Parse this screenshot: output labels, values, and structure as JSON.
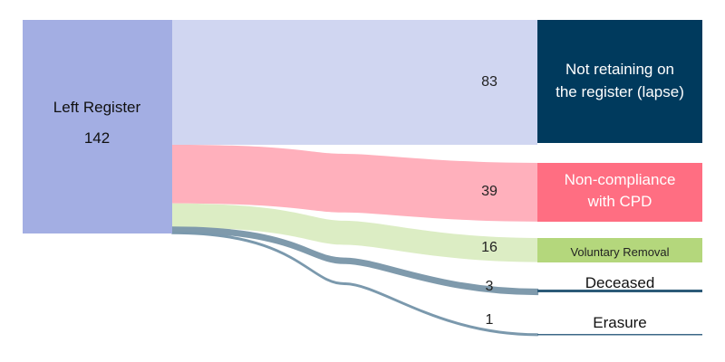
{
  "chart_data": {
    "type": "sankey",
    "source": {
      "label": "Left Register",
      "value": 142,
      "color": "#A3AEE3"
    },
    "targets": [
      {
        "label_lines": [
          "Not retaining on",
          "the register (lapse)"
        ],
        "value": 83,
        "flow_color": "#D0D6F1",
        "node_color": "#003A5D",
        "label_color": "#FFFFFF"
      },
      {
        "label_lines": [
          "Non-compliance",
          "with CPD"
        ],
        "value": 39,
        "flow_color": "#FFB0BC",
        "node_color": "#FF6E82",
        "label_color": "#FFFFFF"
      },
      {
        "label_lines": [
          "Voluntary Removal"
        ],
        "value": 16,
        "flow_color": "#DCEDC4",
        "node_color": "#B4D77C",
        "label_color": "#222222"
      },
      {
        "label_lines": [
          "Deceased"
        ],
        "value": 3,
        "flow_color": "#7F9AAC",
        "node_color": "#2C5A78",
        "label_color": "#111111"
      },
      {
        "label_lines": [
          "Erasure"
        ],
        "value": 1,
        "flow_color": "#7B99AD",
        "node_color": "#3C6887",
        "label_color": "#111111"
      }
    ]
  }
}
